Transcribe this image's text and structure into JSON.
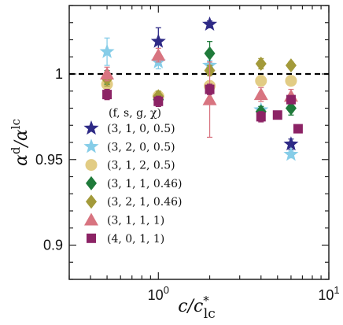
{
  "chart_data": {
    "type": "scatter",
    "title": "",
    "xlabel": "c/c*lc",
    "ylabel": "αd/αlc",
    "xscale": "log",
    "xlim": [
      0.3,
      10
    ],
    "ylim": [
      0.88,
      1.04
    ],
    "x_ticks": [
      {
        "value": 1,
        "base": "10",
        "exp": "0"
      },
      {
        "value": 10,
        "base": "10",
        "exp": "1"
      }
    ],
    "y_ticks": [
      {
        "value": 0.9,
        "label": "0.9"
      },
      {
        "value": 0.95,
        "label": "0.95"
      },
      {
        "value": 1,
        "label": "1"
      }
    ],
    "reference_line": {
      "y": 1,
      "style": "dashed"
    },
    "grid": false,
    "legend": {
      "title": "(f, s, g, χ)",
      "position": "left-middle"
    },
    "series": [
      {
        "name": "(3, 1, 0, 0.5)",
        "marker": "star",
        "color": "#2e2a86",
        "points": [
          {
            "x": 1.0,
            "y": 1.019,
            "err": 0.008
          },
          {
            "x": 2.0,
            "y": 1.029,
            "err": 0.002
          },
          {
            "x": 6.0,
            "y": 0.959,
            "err": 0.003
          }
        ]
      },
      {
        "name": "(3, 2, 0, 0.5)",
        "marker": "star",
        "color": "#86cde8",
        "points": [
          {
            "x": 0.5,
            "y": 1.013,
            "err": 0.008
          },
          {
            "x": 1.0,
            "y": 1.007,
            "err": 0.004
          },
          {
            "x": 2.0,
            "y": 1.005,
            "err": 0.003
          },
          {
            "x": 4.0,
            "y": 0.979,
            "err": 0.002
          },
          {
            "x": 6.0,
            "y": 0.953,
            "err": 0.002
          }
        ]
      },
      {
        "name": "(3, 1, 2, 0.5)",
        "marker": "circle",
        "color": "#e2cc84",
        "points": [
          {
            "x": 0.5,
            "y": 0.994,
            "err": 0.005
          },
          {
            "x": 1.0,
            "y": 0.987,
            "err": 0.003
          },
          {
            "x": 2.0,
            "y": 0.993,
            "err": 0.003
          },
          {
            "x": 4.0,
            "y": 0.996,
            "err": 0.003
          },
          {
            "x": 6.0,
            "y": 0.996,
            "err": 0.002
          }
        ]
      },
      {
        "name": "(3, 1, 1, 0.46)",
        "marker": "diamond",
        "color": "#1f7a3a",
        "points": [
          {
            "x": 0.5,
            "y": 0.998,
            "err": 0.004
          },
          {
            "x": 1.0,
            "y": 0.985,
            "err": 0.003
          },
          {
            "x": 2.0,
            "y": 1.012,
            "err": 0.007
          },
          {
            "x": 4.0,
            "y": 0.978,
            "err": 0.003
          },
          {
            "x": 6.0,
            "y": 0.98,
            "err": 0.004
          }
        ]
      },
      {
        "name": "(3, 2, 1, 0.46)",
        "marker": "diamond",
        "color": "#a39a3a",
        "points": [
          {
            "x": 0.5,
            "y": 0.997,
            "err": 0.004
          },
          {
            "x": 1.0,
            "y": 0.987,
            "err": 0.003
          },
          {
            "x": 2.0,
            "y": 1.002,
            "err": 0.003
          },
          {
            "x": 4.0,
            "y": 1.006,
            "err": 0.003
          },
          {
            "x": 6.0,
            "y": 1.005,
            "err": 0.002
          }
        ]
      },
      {
        "name": "(3, 1, 1, 1)",
        "marker": "triangle",
        "color": "#d87480",
        "points": [
          {
            "x": 0.5,
            "y": 1.0,
            "err": 0.004
          },
          {
            "x": 1.0,
            "y": 1.011,
            "err": 0.004
          },
          {
            "x": 2.0,
            "y": 0.985,
            "err": 0.022
          },
          {
            "x": 4.0,
            "y": 0.988,
            "err": 0.004
          },
          {
            "x": 6.0,
            "y": 0.987,
            "err": 0.004
          }
        ]
      },
      {
        "name": "(4, 0, 1, 1)",
        "marker": "square",
        "color": "#8c2365",
        "points": [
          {
            "x": 0.5,
            "y": 0.988,
            "err": 0.003
          },
          {
            "x": 1.0,
            "y": 0.984,
            "err": 0.003
          },
          {
            "x": 2.0,
            "y": 0.991,
            "err": 0.003
          },
          {
            "x": 4.0,
            "y": 0.975,
            "err": 0.003
          },
          {
            "x": 5.0,
            "y": 0.976,
            "err": 0.002
          },
          {
            "x": 6.0,
            "y": 0.985,
            "err": 0.002
          },
          {
            "x": 6.6,
            "y": 0.968,
            "err": 0.002
          }
        ]
      }
    ]
  }
}
